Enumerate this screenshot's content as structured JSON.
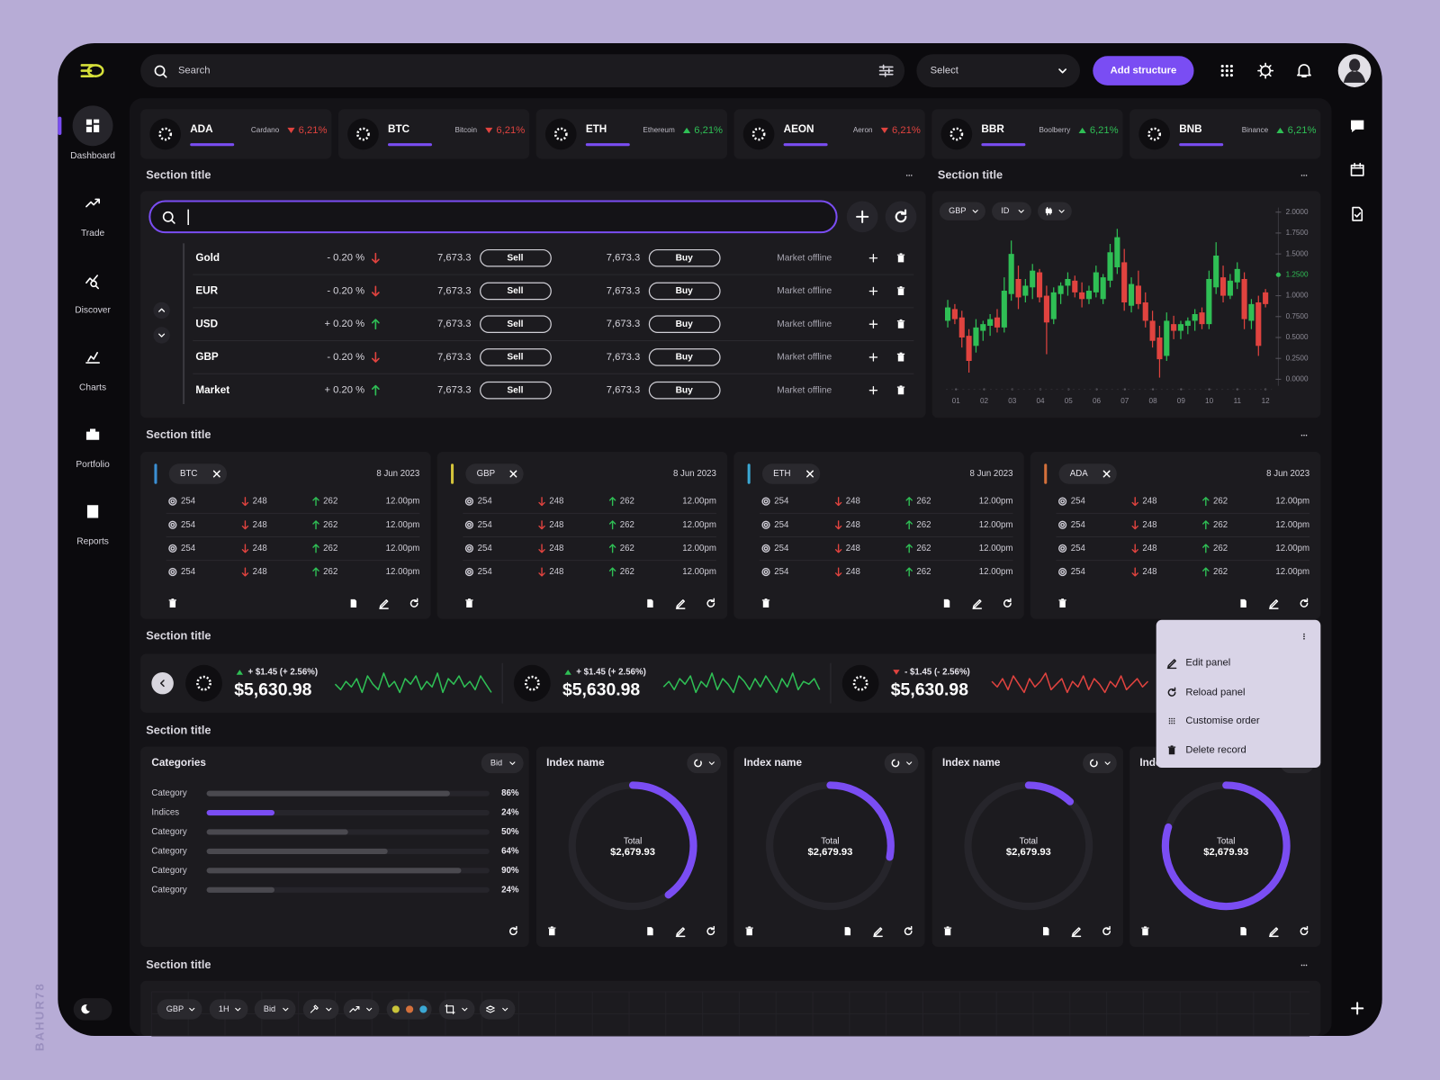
{
  "colors": {
    "up": "#2fbf55",
    "down": "#e0433f",
    "accent": "#7a4df3"
  },
  "watermark": "BAHUR78",
  "sidebar": {
    "items": [
      "Dashboard",
      "Trade",
      "Discover",
      "Charts",
      "Portfolio",
      "Reports"
    ]
  },
  "topbar": {
    "search_placeholder": "Search",
    "select": "Select",
    "button": "Add structure"
  },
  "tickers": [
    {
      "symbol": "ADA",
      "name": "Cardano",
      "change": "6,21%",
      "direction": "down"
    },
    {
      "symbol": "BTC",
      "name": "Bitcoin",
      "change": "6,21%",
      "direction": "down"
    },
    {
      "symbol": "ETH",
      "name": "Ethereum",
      "change": "6,21%",
      "direction": "up"
    },
    {
      "symbol": "AEON",
      "name": "Aeron",
      "change": "6,21%",
      "direction": "down"
    },
    {
      "symbol": "BBR",
      "name": "Boolberry",
      "change": "6,21%",
      "direction": "up"
    },
    {
      "symbol": "BNB",
      "name": "Binance",
      "change": "6,21%",
      "direction": "up"
    }
  ],
  "sections": [
    "Section title",
    "Section title",
    "Section title",
    "Section title",
    "Section title",
    "Section title"
  ],
  "market": {
    "rows": [
      {
        "name": "Gold",
        "change": "- 0.20 %",
        "direction": "down",
        "sell_price": "7,673.3",
        "sell": "Sell",
        "buy_price": "7,673.3",
        "buy": "Buy",
        "status": "Market offline"
      },
      {
        "name": "EUR",
        "change": "- 0.20 %",
        "direction": "down",
        "sell_price": "7,673.3",
        "sell": "Sell",
        "buy_price": "7,673.3",
        "buy": "Buy",
        "status": "Market offline"
      },
      {
        "name": "USD",
        "change": "+ 0.20 %",
        "direction": "up",
        "sell_price": "7,673.3",
        "sell": "Sell",
        "buy_price": "7,673.3",
        "buy": "Buy",
        "status": "Market offline"
      },
      {
        "name": "GBP",
        "change": "- 0.20 %",
        "direction": "down",
        "sell_price": "7,673.3",
        "sell": "Sell",
        "buy_price": "7,673.3",
        "buy": "Buy",
        "status": "Market offline"
      },
      {
        "name": "Market",
        "change": "+ 0.20 %",
        "direction": "up",
        "sell_price": "7,673.3",
        "sell": "Sell",
        "buy_price": "7,673.3",
        "buy": "Buy",
        "status": "Market offline"
      }
    ]
  },
  "chart_data": {
    "type": "candlestick",
    "controls": [
      "GBP",
      "ID"
    ],
    "ylim": [
      0,
      2
    ],
    "yticks": [
      {
        "value": 2,
        "label": "2.0000"
      },
      {
        "value": 1.75,
        "label": "1.7500"
      },
      {
        "value": 1.5,
        "label": "1.5000"
      },
      {
        "value": 1.25,
        "label": "1.2500",
        "color": "#2fbf55"
      },
      {
        "value": 1,
        "label": "1.0000"
      },
      {
        "value": 0.75,
        "label": "0.7500"
      },
      {
        "value": 0.5,
        "label": "0.5000"
      },
      {
        "value": 0.25,
        "label": "0.2500"
      },
      {
        "value": 0,
        "label": "0.0000"
      }
    ],
    "categories": [
      "01",
      "02",
      "03",
      "04",
      "05",
      "06",
      "07",
      "08",
      "09",
      "10",
      "11",
      "12"
    ],
    "candles": [
      {
        "open": 0.7,
        "high": 0.95,
        "low": 0.62,
        "close": 0.86
      },
      {
        "open": 0.84,
        "high": 0.9,
        "low": 0.66,
        "close": 0.72
      },
      {
        "open": 0.74,
        "high": 0.82,
        "low": 0.38,
        "close": 0.5
      },
      {
        "open": 0.52,
        "high": 0.6,
        "low": 0.08,
        "close": 0.22
      },
      {
        "open": 0.4,
        "high": 0.72,
        "low": 0.32,
        "close": 0.62
      },
      {
        "open": 0.58,
        "high": 0.7,
        "low": 0.46,
        "close": 0.66
      },
      {
        "open": 0.64,
        "high": 0.78,
        "low": 0.52,
        "close": 0.72
      },
      {
        "open": 0.74,
        "high": 0.84,
        "low": 0.56,
        "close": 0.62
      },
      {
        "open": 0.62,
        "high": 1.22,
        "low": 0.56,
        "close": 1.06
      },
      {
        "open": 1.02,
        "high": 1.66,
        "low": 0.94,
        "close": 1.5
      },
      {
        "open": 1.2,
        "high": 1.36,
        "low": 0.84,
        "close": 0.98
      },
      {
        "open": 1.0,
        "high": 1.2,
        "low": 0.92,
        "close": 1.12
      },
      {
        "open": 1.1,
        "high": 1.38,
        "low": 0.96,
        "close": 1.3
      },
      {
        "open": 1.28,
        "high": 1.32,
        "low": 0.92,
        "close": 0.98
      },
      {
        "open": 1.0,
        "high": 1.12,
        "low": 0.3,
        "close": 0.68
      },
      {
        "open": 0.72,
        "high": 1.1,
        "low": 0.66,
        "close": 1.04
      },
      {
        "open": 1.02,
        "high": 1.16,
        "low": 0.9,
        "close": 1.12
      },
      {
        "open": 1.12,
        "high": 1.28,
        "low": 1.0,
        "close": 1.2
      },
      {
        "open": 1.18,
        "high": 1.24,
        "low": 0.98,
        "close": 1.04
      },
      {
        "open": 1.04,
        "high": 1.16,
        "low": 0.86,
        "close": 0.96
      },
      {
        "open": 0.96,
        "high": 1.12,
        "low": 0.9,
        "close": 1.06
      },
      {
        "open": 1.04,
        "high": 1.36,
        "low": 0.98,
        "close": 1.28
      },
      {
        "open": 0.96,
        "high": 1.26,
        "low": 0.9,
        "close": 1.22
      },
      {
        "open": 1.18,
        "high": 1.62,
        "low": 1.1,
        "close": 1.52
      },
      {
        "open": 1.34,
        "high": 1.8,
        "low": 1.26,
        "close": 1.7
      },
      {
        "open": 1.4,
        "high": 1.56,
        "low": 0.82,
        "close": 0.92
      },
      {
        "open": 0.88,
        "high": 1.22,
        "low": 0.8,
        "close": 1.14
      },
      {
        "open": 1.12,
        "high": 1.3,
        "low": 0.84,
        "close": 0.9
      },
      {
        "open": 0.92,
        "high": 1.04,
        "low": 0.62,
        "close": 0.7
      },
      {
        "open": 0.7,
        "high": 0.82,
        "low": 0.38,
        "close": 0.46
      },
      {
        "open": 0.5,
        "high": 0.64,
        "low": 0.02,
        "close": 0.24
      },
      {
        "open": 0.28,
        "high": 0.8,
        "low": 0.22,
        "close": 0.7
      },
      {
        "open": 0.66,
        "high": 0.76,
        "low": 0.48,
        "close": 0.58
      },
      {
        "open": 0.58,
        "high": 0.7,
        "low": 0.48,
        "close": 0.66
      },
      {
        "open": 0.64,
        "high": 0.74,
        "low": 0.54,
        "close": 0.7
      },
      {
        "open": 0.7,
        "high": 0.84,
        "low": 0.58,
        "close": 0.78
      },
      {
        "open": 0.8,
        "high": 0.86,
        "low": 0.6,
        "close": 0.66
      },
      {
        "open": 0.66,
        "high": 1.3,
        "low": 0.6,
        "close": 1.2
      },
      {
        "open": 1.1,
        "high": 1.64,
        "low": 1.02,
        "close": 1.48
      },
      {
        "open": 1.22,
        "high": 1.36,
        "low": 0.92,
        "close": 1.0
      },
      {
        "open": 1.0,
        "high": 1.26,
        "low": 0.96,
        "close": 1.18
      },
      {
        "open": 1.16,
        "high": 1.4,
        "low": 1.08,
        "close": 1.32
      },
      {
        "open": 1.2,
        "high": 1.28,
        "low": 0.6,
        "close": 0.72
      },
      {
        "open": 0.7,
        "high": 0.96,
        "low": 0.6,
        "close": 0.9
      },
      {
        "open": 0.92,
        "high": 1.0,
        "low": 0.28,
        "close": 0.4
      },
      {
        "open": 1.04,
        "high": 1.08,
        "low": 0.86,
        "close": 0.9
      }
    ]
  },
  "watchlists": [
    {
      "symbol": "BTC",
      "date": "8 Jun 2023",
      "color": "#3b8fd4",
      "rows": [
        {
          "value": 254,
          "low": 248,
          "high": 262,
          "time": "12.00pm"
        },
        {
          "value": 254,
          "low": 248,
          "high": 262,
          "time": "12.00pm"
        },
        {
          "value": 254,
          "low": 248,
          "high": 262,
          "time": "12.00pm"
        },
        {
          "value": 254,
          "low": 248,
          "high": 262,
          "time": "12.00pm"
        }
      ]
    },
    {
      "symbol": "GBP",
      "date": "8 Jun 2023",
      "color": "#d4c43b",
      "rows": [
        {
          "value": 254,
          "low": 248,
          "high": 262,
          "time": "12.00pm"
        },
        {
          "value": 254,
          "low": 248,
          "high": 262,
          "time": "12.00pm"
        },
        {
          "value": 254,
          "low": 248,
          "high": 262,
          "time": "12.00pm"
        },
        {
          "value": 254,
          "low": 248,
          "high": 262,
          "time": "12.00pm"
        }
      ]
    },
    {
      "symbol": "ETH",
      "date": "8 Jun 2023",
      "color": "#3ba8d4",
      "rows": [
        {
          "value": 254,
          "low": 248,
          "high": 262,
          "time": "12.00pm"
        },
        {
          "value": 254,
          "low": 248,
          "high": 262,
          "time": "12.00pm"
        },
        {
          "value": 254,
          "low": 248,
          "high": 262,
          "time": "12.00pm"
        },
        {
          "value": 254,
          "low": 248,
          "high": 262,
          "time": "12.00pm"
        }
      ]
    },
    {
      "symbol": "ADA",
      "date": "8 Jun 2023",
      "color": "#d4703b",
      "rows": [
        {
          "value": 254,
          "low": 248,
          "high": 262,
          "time": "12.00pm"
        },
        {
          "value": 254,
          "low": 248,
          "high": 262,
          "time": "12.00pm"
        },
        {
          "value": 254,
          "low": 248,
          "high": 262,
          "time": "12.00pm"
        },
        {
          "value": 254,
          "low": 248,
          "high": 262,
          "time": "12.00pm"
        }
      ]
    }
  ],
  "movers": {
    "ylim": [
      0,
      10
    ],
    "items": [
      {
        "change": "+ $1.45 (+ 2.56%)",
        "price": "$5,630.98",
        "direction": "up",
        "values": [
          5,
          3,
          6,
          4,
          7,
          2,
          8,
          5,
          3,
          9,
          4,
          6,
          2,
          7,
          5,
          8,
          3,
          6,
          4,
          9,
          2,
          7,
          5,
          8,
          4,
          6,
          3,
          8,
          5,
          2
        ]
      },
      {
        "change": "+ $1.45 (+ 2.56%)",
        "price": "$5,630.98",
        "direction": "up",
        "values": [
          4,
          6,
          3,
          7,
          5,
          8,
          2,
          6,
          4,
          9,
          3,
          7,
          5,
          2,
          8,
          6,
          3,
          7,
          4,
          8,
          5,
          2,
          7,
          4,
          9,
          3,
          6,
          5,
          7,
          3
        ]
      },
      {
        "change": "- $1.45 (- 2.56%)",
        "price": "$5,630.98",
        "direction": "down",
        "values": [
          6,
          4,
          7,
          3,
          8,
          5,
          2,
          7,
          4,
          6,
          9,
          3,
          5,
          7,
          2,
          6,
          4,
          8,
          3,
          7,
          5,
          2,
          6,
          4,
          8,
          3,
          5,
          7,
          4,
          6
        ]
      }
    ]
  },
  "menu": [
    "Edit panel",
    "Reload panel",
    "Customise order",
    "Delete record"
  ],
  "categories": {
    "title": "Categories",
    "dropdown": "Bid",
    "items": [
      {
        "label": "Category",
        "value": 86,
        "value_label": "86%",
        "color": "#4a494f"
      },
      {
        "label": "Indices",
        "value": 24,
        "value_label": "24%",
        "color": "#7a4df3"
      },
      {
        "label": "Category",
        "value": 50,
        "value_label": "50%",
        "color": "#4a494f"
      },
      {
        "label": "Category",
        "value": 64,
        "value_label": "64%",
        "color": "#4a494f"
      },
      {
        "label": "Category",
        "value": 90,
        "value_label": "90%",
        "color": "#4a494f"
      },
      {
        "label": "Category",
        "value": 24,
        "value_label": "24%",
        "color": "#4a494f"
      }
    ]
  },
  "donuts": [
    {
      "title": "Index name",
      "total_label": "Total",
      "total": "$2,679.93",
      "value": 40
    },
    {
      "title": "Index name",
      "total_label": "Total",
      "total": "$2,679.93",
      "value": 28
    },
    {
      "title": "Index name",
      "total_label": "Total",
      "total": "$2,679.93",
      "value": 12
    },
    {
      "title": "Index name",
      "total_label": "Total",
      "total": "$2,679.93",
      "value": 80
    }
  ],
  "toolbar": {
    "items": [
      "GBP",
      "1H",
      "Bid"
    ],
    "colors": [
      "#c9c43a",
      "#d4703b",
      "#3ba8d4"
    ]
  }
}
